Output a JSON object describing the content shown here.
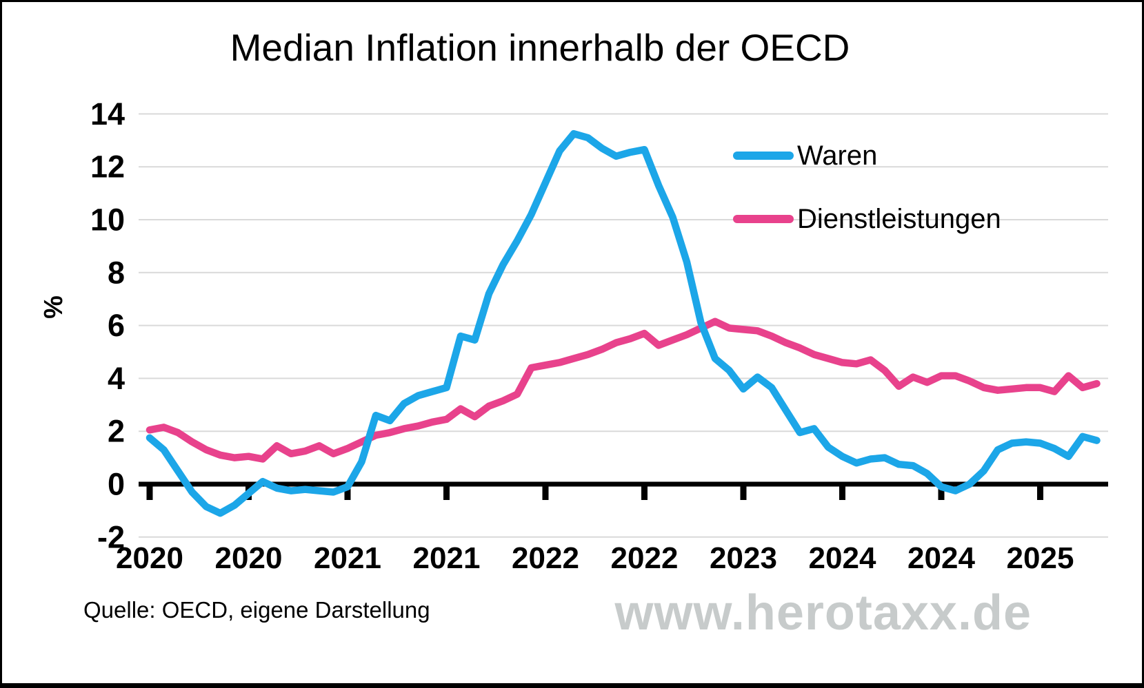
{
  "title": "Median Inflation innerhalb der OECD",
  "source_note": "Quelle: OECD, eigene Darstellung",
  "watermark": "www.herotaxx.de",
  "colors": {
    "waren_blue": "#1CA6E8",
    "dienstleistungen_pink": "#E8428C",
    "gridline": "#D9D9D9",
    "axis": "#000000",
    "watermark_gray": "#C7CBCB"
  },
  "chart_data": {
    "type": "line",
    "title": "Median Inflation innerhalb der OECD",
    "xlabel": "",
    "ylabel": "%",
    "ylim": [
      -2,
      14
    ],
    "yticks": [
      14,
      12,
      10,
      8,
      6,
      4,
      2,
      0,
      -2
    ],
    "grid": true,
    "legend_position": "upper right",
    "x_axis": {
      "unit": "month",
      "start": "2020-01",
      "end": "2025-08",
      "points": 68,
      "tick_every_months": 7,
      "tick_labels": [
        "2020",
        "2020",
        "2021",
        "2021",
        "2022",
        "2022",
        "2023",
        "2024",
        "2024",
        "2025"
      ]
    },
    "series": [
      {
        "name": "Waren",
        "color": "#1CA6E8",
        "values": [
          1.75,
          1.3,
          0.5,
          -0.3,
          -0.85,
          -1.1,
          -0.8,
          -0.35,
          0.1,
          -0.15,
          -0.25,
          -0.2,
          -0.25,
          -0.3,
          -0.1,
          0.85,
          2.6,
          2.4,
          3.05,
          3.35,
          3.5,
          3.65,
          5.6,
          5.45,
          7.2,
          8.3,
          9.2,
          10.2,
          11.4,
          12.6,
          13.25,
          13.1,
          12.7,
          12.4,
          12.55,
          12.65,
          11.3,
          10.1,
          8.4,
          6.1,
          4.75,
          4.3,
          3.6,
          4.05,
          3.65,
          2.8,
          1.95,
          2.1,
          1.4,
          1.05,
          0.8,
          0.95,
          1.0,
          0.75,
          0.7,
          0.4,
          -0.1,
          -0.25,
          0.0,
          0.5,
          1.3,
          1.55,
          1.6,
          1.55,
          1.35,
          1.05,
          1.8,
          1.65
        ]
      },
      {
        "name": "Dienstleistungen",
        "color": "#E8428C",
        "values": [
          2.05,
          2.15,
          1.95,
          1.6,
          1.3,
          1.1,
          1.0,
          1.05,
          0.95,
          1.45,
          1.15,
          1.25,
          1.45,
          1.15,
          1.35,
          1.6,
          1.85,
          1.95,
          2.1,
          2.2,
          2.35,
          2.45,
          2.85,
          2.55,
          2.95,
          3.15,
          3.4,
          4.4,
          4.5,
          4.6,
          4.75,
          4.9,
          5.1,
          5.35,
          5.5,
          5.7,
          5.25,
          5.45,
          5.65,
          5.9,
          6.15,
          5.9,
          5.85,
          5.8,
          5.6,
          5.35,
          5.15,
          4.9,
          4.75,
          4.6,
          4.55,
          4.7,
          4.3,
          3.7,
          4.05,
          3.85,
          4.1,
          4.1,
          3.9,
          3.65,
          3.55,
          3.6,
          3.65,
          3.65,
          3.5,
          4.1,
          3.65,
          3.8
        ]
      }
    ]
  }
}
